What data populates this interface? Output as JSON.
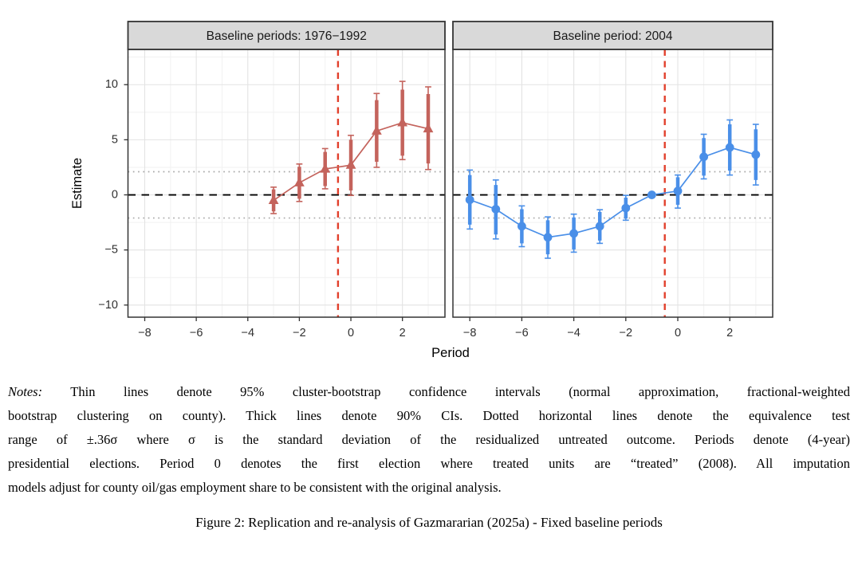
{
  "chart_data": {
    "type": "line",
    "subtype": "event-study with error bars (two facets)",
    "xlabel": "Period",
    "ylabel": "Estimate",
    "xlim": [
      -8.65,
      3.65
    ],
    "ylim": [
      -11.1,
      13.2
    ],
    "x_ticks": [
      -8,
      -6,
      -4,
      -2,
      0,
      2
    ],
    "y_ticks": [
      10,
      5,
      0,
      -5,
      -10
    ],
    "x_minor_gridlines": [
      -7,
      -5,
      -3,
      -1,
      1,
      3
    ],
    "y_minor_gridlines": [
      12.5,
      7.5,
      2.5,
      -2.5,
      -7.5
    ],
    "grid": true,
    "reference_lines": {
      "zero_y": 0,
      "equivalence_band": [
        2.1,
        -2.1
      ],
      "treatment_x": -0.5
    },
    "panels": [
      {
        "title": "Baseline periods: 1976−1992",
        "marker": "triangle",
        "color": "#C4635C",
        "points": [
          {
            "x": -3,
            "est": -0.5,
            "lo95": -1.7,
            "hi95": 0.7,
            "lo90": -1.5,
            "hi90": 0.5
          },
          {
            "x": -2,
            "est": 1.1,
            "lo95": -0.6,
            "hi95": 2.8,
            "lo90": -0.35,
            "hi90": 2.55
          },
          {
            "x": -1,
            "est": 2.35,
            "lo95": 0.55,
            "hi95": 4.2,
            "lo90": 0.8,
            "hi90": 3.9
          },
          {
            "x": 0,
            "est": 2.7,
            "lo95": -0.05,
            "hi95": 5.4,
            "lo90": 0.4,
            "hi90": 5.0
          },
          {
            "x": 1,
            "est": 5.8,
            "lo95": 2.5,
            "hi95": 9.2,
            "lo90": 3.0,
            "hi90": 8.6
          },
          {
            "x": 2,
            "est": 6.55,
            "lo95": 3.2,
            "hi95": 10.3,
            "lo90": 3.55,
            "hi90": 9.55
          },
          {
            "x": 3,
            "est": 6.0,
            "lo95": 2.3,
            "hi95": 9.8,
            "lo90": 2.85,
            "hi90": 9.15
          }
        ]
      },
      {
        "title": "Baseline period: 2004",
        "marker": "circle",
        "color": "#4A8FE8",
        "points": [
          {
            "x": -8,
            "est": -0.45,
            "lo95": -3.1,
            "hi95": 2.25,
            "lo90": -2.7,
            "hi90": 1.8
          },
          {
            "x": -7,
            "est": -1.3,
            "lo95": -4.0,
            "hi95": 1.35,
            "lo90": -3.6,
            "hi90": 0.9
          },
          {
            "x": -6,
            "est": -2.85,
            "lo95": -4.7,
            "hi95": -1.0,
            "lo90": -4.4,
            "hi90": -1.3
          },
          {
            "x": -5,
            "est": -3.85,
            "lo95": -5.75,
            "hi95": -2.0,
            "lo90": -5.4,
            "hi90": -2.3
          },
          {
            "x": -4,
            "est": -3.5,
            "lo95": -5.2,
            "hi95": -1.75,
            "lo90": -4.95,
            "hi90": -2.05
          },
          {
            "x": -3,
            "est": -2.85,
            "lo95": -4.4,
            "hi95": -1.35,
            "lo90": -4.15,
            "hi90": -1.55
          },
          {
            "x": -2,
            "est": -1.2,
            "lo95": -2.3,
            "hi95": -0.05,
            "lo90": -2.15,
            "hi90": -0.25
          },
          {
            "x": -1,
            "est": 0.0,
            "lo95": null,
            "hi95": null,
            "lo90": null,
            "hi90": null,
            "reference": true
          },
          {
            "x": 0,
            "est": 0.35,
            "lo95": -1.2,
            "hi95": 1.8,
            "lo90": -0.9,
            "hi90": 1.6
          },
          {
            "x": 1,
            "est": 3.45,
            "lo95": 1.45,
            "hi95": 5.5,
            "lo90": 1.75,
            "hi90": 5.15
          },
          {
            "x": 2,
            "est": 4.3,
            "lo95": 1.8,
            "hi95": 6.8,
            "lo90": 2.2,
            "hi90": 6.4
          },
          {
            "x": 3,
            "est": 3.65,
            "lo95": 0.9,
            "hi95": 6.4,
            "lo90": 1.35,
            "hi90": 5.95
          }
        ]
      }
    ],
    "styles": {
      "strip_fill": "#D9D9D9",
      "border": "#333333",
      "grid_major": "#E3E3E3",
      "grid_minor": "#F1F1F1",
      "zero_line": "#000000",
      "equivalence_line": "#A8A8A8",
      "treatment_line": "#E2402C",
      "tick_label_color": "#303030"
    }
  },
  "notes": {
    "label": "Notes:",
    "lines": [
      "Thin lines denote 95% cluster-bootstrap confidence intervals (normal approximation, fractional-weighted",
      "bootstrap clustering on county). Thick lines denote 90% CIs. Dotted horizontal lines denote the equivalence test",
      "range of ±.36σ where σ is the standard deviation of the residualized untreated outcome. Periods denote (4-year)",
      "presidential elections. Period 0 denotes the first election where treated units are “treated” (2008). All imputation",
      "models adjust for county oil/gas employment share to be consistent with the original analysis."
    ]
  },
  "caption": "Figure 2: Replication and re-analysis of Gazmararian (2025a) - Fixed baseline periods"
}
